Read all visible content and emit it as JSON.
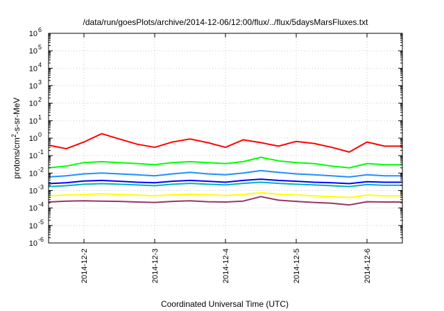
{
  "chart_data": {
    "type": "line",
    "title": "/data/run/goesPlots/archive/2014-12-06/12:00/flux/../flux/5daysMarsFluxes.txt",
    "xlabel": "Coordinated Universal Time (UTC)",
    "ylabel": "protons/cm2-s-sr-MeV",
    "ylabel_parts": {
      "main": "protons/cm",
      "sup": "2",
      "rest": "-s-sr-MeV"
    },
    "y_scale": "log",
    "ylim": [
      1e-06,
      1000000.0
    ],
    "y_ticks": [
      {
        "base": "10",
        "exp": "-6"
      },
      {
        "base": "10",
        "exp": "-5"
      },
      {
        "base": "10",
        "exp": "-4"
      },
      {
        "base": "10",
        "exp": "-3"
      },
      {
        "base": "10",
        "exp": "-2"
      },
      {
        "base": "10",
        "exp": "-1"
      },
      {
        "base": "10",
        "exp": "0"
      },
      {
        "base": "10",
        "exp": "1"
      },
      {
        "base": "10",
        "exp": "2"
      },
      {
        "base": "10",
        "exp": "3"
      },
      {
        "base": "10",
        "exp": "4"
      },
      {
        "base": "10",
        "exp": "5"
      },
      {
        "base": "10",
        "exp": "6"
      }
    ],
    "xlim": [
      "2014-12-01T12:00",
      "2014-12-06T12:00"
    ],
    "x_ticks": [
      "2014-12-2",
      "2014-12-3",
      "2014-12-4",
      "2014-12-5",
      "2014-12-6"
    ],
    "grid": true,
    "legend": "none",
    "series": [
      {
        "color": "#ff0000",
        "x": [
          "2014-12-01T12:00",
          "2014-12-01T18:00",
          "2014-12-02T00:00",
          "2014-12-02T06:00",
          "2014-12-02T12:00",
          "2014-12-02T18:00",
          "2014-12-03T00:00",
          "2014-12-03T06:00",
          "2014-12-03T12:00",
          "2014-12-03T18:00",
          "2014-12-04T00:00",
          "2014-12-04T06:00",
          "2014-12-04T12:00",
          "2014-12-04T18:00",
          "2014-12-05T00:00",
          "2014-12-05T06:00",
          "2014-12-05T12:00",
          "2014-12-05T18:00",
          "2014-12-06T00:00",
          "2014-12-06T06:00",
          "2014-12-06T12:00"
        ],
        "values": [
          0.4,
          0.25,
          0.6,
          1.8,
          0.9,
          0.45,
          0.3,
          0.6,
          0.9,
          0.55,
          0.3,
          0.8,
          0.55,
          0.35,
          0.65,
          0.5,
          0.3,
          0.16,
          0.6,
          0.35,
          0.35
        ]
      },
      {
        "color": "#00ff00",
        "x": [
          "2014-12-01T12:00",
          "2014-12-01T18:00",
          "2014-12-02T00:00",
          "2014-12-02T06:00",
          "2014-12-02T12:00",
          "2014-12-02T18:00",
          "2014-12-03T00:00",
          "2014-12-03T06:00",
          "2014-12-03T12:00",
          "2014-12-03T18:00",
          "2014-12-04T00:00",
          "2014-12-04T06:00",
          "2014-12-04T12:00",
          "2014-12-04T18:00",
          "2014-12-05T00:00",
          "2014-12-05T06:00",
          "2014-12-05T12:00",
          "2014-12-05T18:00",
          "2014-12-06T00:00",
          "2014-12-06T06:00",
          "2014-12-06T12:00"
        ],
        "values": [
          0.02,
          0.025,
          0.04,
          0.045,
          0.04,
          0.035,
          0.03,
          0.04,
          0.045,
          0.04,
          0.035,
          0.045,
          0.08,
          0.05,
          0.04,
          0.035,
          0.025,
          0.02,
          0.035,
          0.03,
          0.03
        ]
      },
      {
        "color": "#1e90ff",
        "x": [
          "2014-12-01T12:00",
          "2014-12-01T18:00",
          "2014-12-02T00:00",
          "2014-12-02T06:00",
          "2014-12-02T12:00",
          "2014-12-02T18:00",
          "2014-12-03T00:00",
          "2014-12-03T06:00",
          "2014-12-03T12:00",
          "2014-12-03T18:00",
          "2014-12-04T00:00",
          "2014-12-04T06:00",
          "2014-12-04T12:00",
          "2014-12-04T18:00",
          "2014-12-05T00:00",
          "2014-12-05T06:00",
          "2014-12-05T12:00",
          "2014-12-05T18:00",
          "2014-12-06T00:00",
          "2014-12-06T06:00",
          "2014-12-06T12:00"
        ],
        "values": [
          0.006,
          0.007,
          0.009,
          0.01,
          0.009,
          0.008,
          0.007,
          0.009,
          0.011,
          0.009,
          0.008,
          0.01,
          0.014,
          0.011,
          0.009,
          0.008,
          0.007,
          0.006,
          0.008,
          0.007,
          0.007
        ]
      },
      {
        "color": "#0000ff",
        "x": [
          "2014-12-01T12:00",
          "2014-12-01T18:00",
          "2014-12-02T00:00",
          "2014-12-02T06:00",
          "2014-12-02T12:00",
          "2014-12-02T18:00",
          "2014-12-03T00:00",
          "2014-12-03T06:00",
          "2014-12-03T12:00",
          "2014-12-03T18:00",
          "2014-12-04T00:00",
          "2014-12-04T06:00",
          "2014-12-04T12:00",
          "2014-12-04T18:00",
          "2014-12-05T00:00",
          "2014-12-05T06:00",
          "2014-12-05T12:00",
          "2014-12-05T18:00",
          "2014-12-06T00:00",
          "2014-12-06T06:00",
          "2014-12-06T12:00"
        ],
        "values": [
          0.0025,
          0.0028,
          0.0035,
          0.0038,
          0.0034,
          0.003,
          0.0028,
          0.0034,
          0.0038,
          0.0034,
          0.003,
          0.0038,
          0.0045,
          0.0038,
          0.0034,
          0.003,
          0.0028,
          0.0025,
          0.0032,
          0.003,
          0.003
        ]
      },
      {
        "color": "#00b5b5",
        "x": [
          "2014-12-01T12:00",
          "2014-12-01T18:00",
          "2014-12-02T00:00",
          "2014-12-02T06:00",
          "2014-12-02T12:00",
          "2014-12-02T18:00",
          "2014-12-03T00:00",
          "2014-12-03T06:00",
          "2014-12-03T12:00",
          "2014-12-03T18:00",
          "2014-12-04T00:00",
          "2014-12-04T06:00",
          "2014-12-04T12:00",
          "2014-12-04T18:00",
          "2014-12-05T00:00",
          "2014-12-05T06:00",
          "2014-12-05T12:00",
          "2014-12-05T18:00",
          "2014-12-06T00:00",
          "2014-12-06T06:00",
          "2014-12-06T12:00"
        ],
        "values": [
          0.0017,
          0.0019,
          0.0023,
          0.0025,
          0.0023,
          0.0021,
          0.0019,
          0.0023,
          0.0026,
          0.0023,
          0.0021,
          0.0026,
          0.003,
          0.0026,
          0.0023,
          0.0021,
          0.0019,
          0.0017,
          0.0022,
          0.002,
          0.002
        ]
      },
      {
        "color": "#ffff00",
        "x": [
          "2014-12-01T12:00",
          "2014-12-01T18:00",
          "2014-12-02T00:00",
          "2014-12-02T06:00",
          "2014-12-02T12:00",
          "2014-12-02T18:00",
          "2014-12-03T00:00",
          "2014-12-03T06:00",
          "2014-12-03T12:00",
          "2014-12-03T18:00",
          "2014-12-04T00:00",
          "2014-12-04T06:00",
          "2014-12-04T12:00",
          "2014-12-04T18:00",
          "2014-12-05T00:00",
          "2014-12-05T06:00",
          "2014-12-05T12:00",
          "2014-12-05T18:00",
          "2014-12-06T00:00",
          "2014-12-06T06:00",
          "2014-12-06T12:00"
        ],
        "values": [
          0.0005,
          0.00055,
          0.0006,
          0.00065,
          0.0006,
          0.00055,
          0.0005,
          0.00058,
          0.00062,
          0.00058,
          0.00052,
          0.0006,
          0.00075,
          0.00062,
          0.00056,
          0.0005,
          0.00045,
          0.0004,
          0.00055,
          0.0005,
          0.0005
        ]
      },
      {
        "color": "#993366",
        "x": [
          "2014-12-01T12:00",
          "2014-12-01T18:00",
          "2014-12-02T00:00",
          "2014-12-02T06:00",
          "2014-12-02T12:00",
          "2014-12-02T18:00",
          "2014-12-03T00:00",
          "2014-12-03T06:00",
          "2014-12-03T12:00",
          "2014-12-03T18:00",
          "2014-12-04T00:00",
          "2014-12-04T06:00",
          "2014-12-04T12:00",
          "2014-12-04T18:00",
          "2014-12-05T00:00",
          "2014-12-05T06:00",
          "2014-12-05T12:00",
          "2014-12-05T18:00",
          "2014-12-06T00:00",
          "2014-12-06T06:00",
          "2014-12-06T12:00"
        ],
        "values": [
          0.00022,
          0.00025,
          0.00026,
          0.00025,
          0.00024,
          0.00022,
          0.00021,
          0.00024,
          0.00026,
          0.00023,
          0.00022,
          0.00025,
          0.00045,
          0.00028,
          0.00024,
          0.00021,
          0.00019,
          0.00015,
          0.00023,
          0.00022,
          0.00022
        ]
      }
    ]
  }
}
